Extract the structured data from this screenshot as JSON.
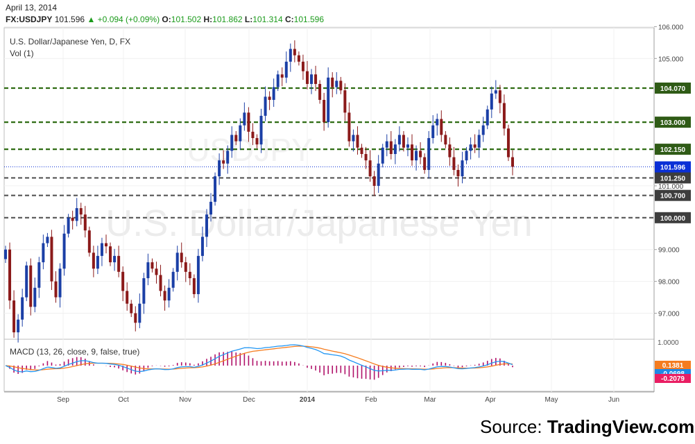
{
  "header": {
    "date": "April 13, 2014",
    "symbol": "FX:USDJPY",
    "last": "101.596",
    "change": "+0.094 (+0.09%)",
    "open_label": "O:",
    "open": "101.502",
    "high_label": "H:",
    "high": "101.862",
    "low_label": "L:",
    "low": "101.314",
    "close_label": "C:",
    "close": "101.596"
  },
  "main_pane": {
    "title": "U.S. Dollar/Japanese Yen, D, FX",
    "volume_label": "Vol (1)",
    "watermark": "U.S. Dollar/Japanese Yen"
  },
  "macd_pane": {
    "title": "MACD (13, 26, close, 9, false, true)",
    "tags": [
      {
        "text": "0.1381",
        "color": "#f57c1f"
      },
      {
        "text": "-0.0698",
        "color": "#1e88e5"
      },
      {
        "text": "-0.2079",
        "color": "#e91e63"
      }
    ],
    "axis_label": "1.0000"
  },
  "source": {
    "prefix": "Source: ",
    "name": "TradingView.com"
  },
  "colors": {
    "up": "#1b3fa6",
    "down": "#8b1a1a",
    "level_green": "#2e6b12",
    "level_gray": "#555555",
    "last_price": "#0a2fd6",
    "macd_line": "#2196f3",
    "signal_line": "#f57c1f",
    "histogram": "#b0126a"
  },
  "chart_data": {
    "type": "candlestick",
    "title": "U.S. Dollar/Japanese Yen, D, FX",
    "x_tick_labels": [
      "Sep",
      "Oct",
      "Nov",
      "Dec",
      "2014",
      "Feb",
      "Mar",
      "Apr",
      "May",
      "Jun"
    ],
    "y_tick_labels": [
      "97.000",
      "98.000",
      "99.000",
      "101.000",
      "105.000",
      "106.000"
    ],
    "ylim": [
      96.1,
      106.0
    ],
    "horizontal_levels": [
      {
        "value": 104.07,
        "label": "104.070",
        "style": "green"
      },
      {
        "value": 103.0,
        "label": "103.000",
        "style": "green"
      },
      {
        "value": 102.15,
        "label": "102.150",
        "style": "green"
      },
      {
        "value": 101.25,
        "label": "101.250",
        "style": "gray"
      },
      {
        "value": 100.7,
        "label": "100.700",
        "style": "gray"
      },
      {
        "value": 100.0,
        "label": "100.000",
        "style": "gray"
      }
    ],
    "last_price": {
      "value": 101.596,
      "label": "101.596"
    },
    "closes": [
      99.0,
      97.4,
      96.4,
      96.8,
      97.5,
      98.5,
      97.2,
      97.8,
      98.6,
      99.2,
      99.4,
      98.0,
      97.5,
      98.4,
      99.5,
      100.0,
      99.9,
      100.3,
      100.1,
      99.6,
      98.9,
      98.4,
      98.8,
      99.2,
      99.1,
      98.6,
      98.8,
      98.3,
      97.7,
      97.3,
      97.0,
      96.7,
      97.3,
      98.1,
      98.6,
      98.4,
      98.2,
      97.7,
      97.4,
      97.8,
      98.3,
      98.9,
      98.6,
      98.3,
      98.1,
      97.6,
      98.8,
      99.4,
      100.1,
      100.5,
      101.3,
      101.8,
      101.7,
      102.1,
      102.6,
      102.4,
      102.9,
      103.3,
      102.7,
      102.5,
      102.3,
      103.2,
      103.8,
      103.7,
      104.1,
      104.5,
      104.4,
      104.9,
      105.3,
      105.1,
      104.9,
      104.6,
      104.2,
      104.5,
      104.2,
      103.7,
      103.0,
      104.4,
      104.1,
      104.3,
      104.0,
      103.3,
      102.4,
      102.6,
      102.2,
      102.0,
      101.8,
      101.3,
      101.0,
      101.7,
      102.2,
      102.4,
      102.0,
      102.3,
      102.6,
      102.2,
      102.3,
      101.8,
      102.1,
      101.9,
      101.5,
      102.5,
      102.9,
      103.1,
      102.6,
      102.3,
      101.9,
      101.5,
      101.3,
      101.8,
      102.1,
      102.3,
      102.2,
      102.6,
      102.9,
      103.4,
      103.9,
      104.0,
      103.6,
      102.8,
      101.9,
      101.6
    ],
    "macd": {
      "series": [
        "MACD",
        "Signal",
        "Histogram"
      ],
      "last_values": [
        -0.0698,
        0.1381,
        -0.2079
      ]
    }
  }
}
